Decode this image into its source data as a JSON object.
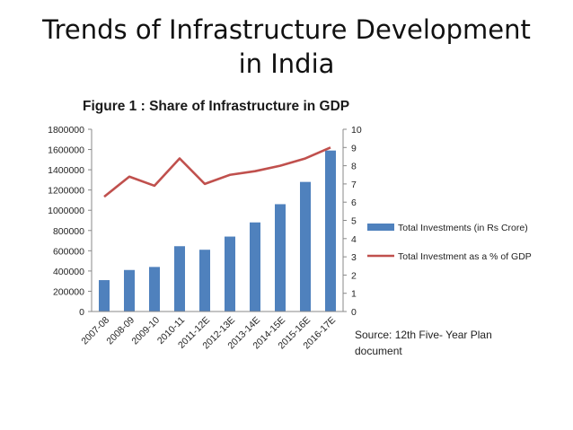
{
  "slide": {
    "title_line1": "Trends of Infrastructure Development",
    "title_line2": "in India"
  },
  "source": {
    "line1": "Source: 12th Five- Year Plan",
    "line2": "document"
  },
  "colors": {
    "bar": "#4F81BD",
    "line": "#C0504D",
    "axis": "#888888"
  },
  "chart_data": {
    "type": "bar",
    "title": "Figure 1 : Share of Infrastructure in GDP",
    "categories": [
      "2007-08",
      "2008-09",
      "2009-10",
      "2010-11",
      "2011-12E",
      "2012-13E",
      "2013-14E",
      "2014-15E",
      "2015-16E",
      "2016-17E"
    ],
    "series": [
      {
        "name": "Total Investments (in Rs Crore)",
        "type": "bar",
        "axis": "left",
        "values": [
          310000,
          410000,
          440000,
          645000,
          610000,
          740000,
          880000,
          1060000,
          1280000,
          1590000
        ]
      },
      {
        "name": "Total Investment as a % of GDP",
        "type": "line",
        "axis": "right",
        "values": [
          6.3,
          7.4,
          6.9,
          8.4,
          7.0,
          7.5,
          7.7,
          8.0,
          8.4,
          9.0
        ]
      }
    ],
    "yticks_left": [
      "1800000",
      "1600000",
      "1400000",
      "1200000",
      "1000000",
      "800000",
      "600000",
      "400000",
      "200000",
      "0"
    ],
    "yticks_right": [
      "10",
      "9",
      "8",
      "7",
      "6",
      "5",
      "4",
      "3",
      "2",
      "1",
      "0"
    ],
    "ylim_left": [
      0,
      1800000
    ],
    "ylim_right": [
      0,
      10
    ],
    "grid": false,
    "legend_position": "right"
  }
}
